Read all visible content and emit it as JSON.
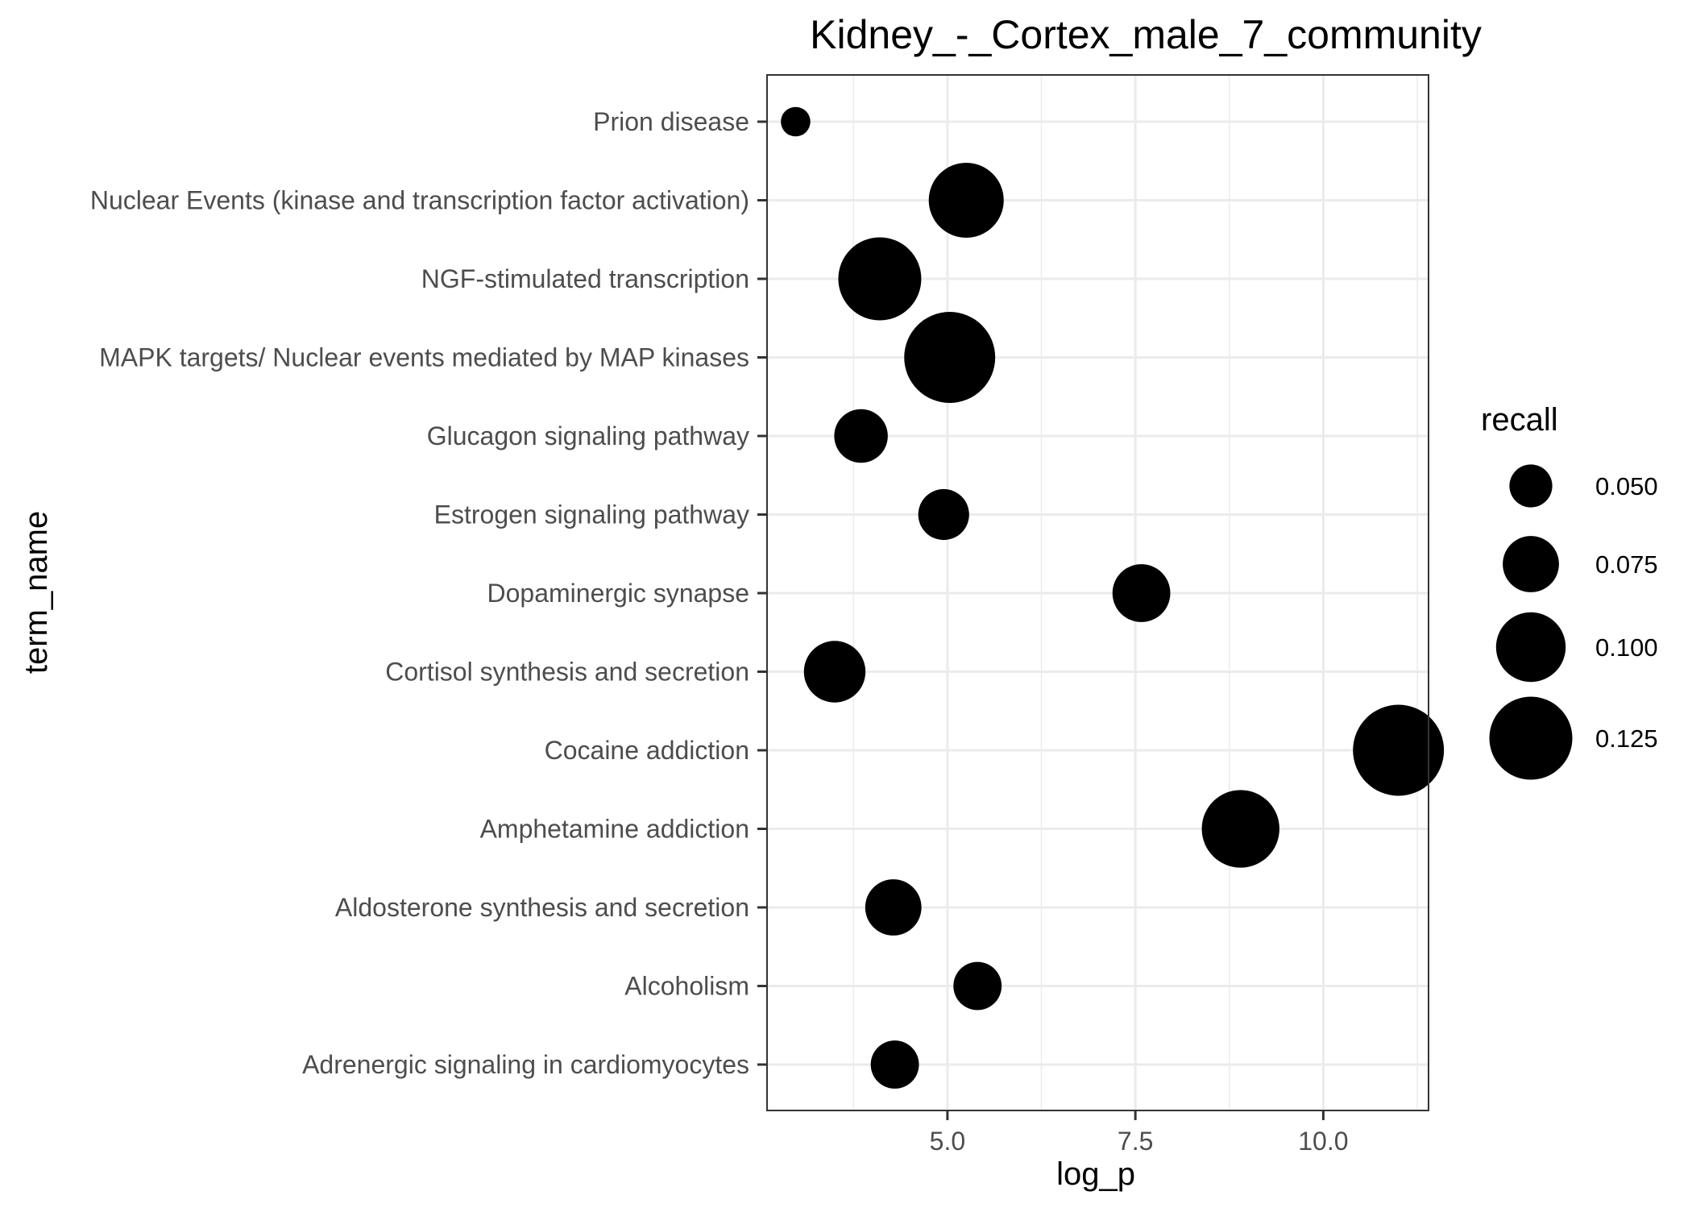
{
  "chart_data": {
    "type": "scatter",
    "title": "Kidney_-_Cortex_male_7_community",
    "xlabel": "log_p",
    "ylabel": "term_name",
    "xlim": [
      2.6,
      11.4
    ],
    "x_ticks": [
      {
        "value": 5.0,
        "label": "5.0"
      },
      {
        "value": 7.5,
        "label": "7.5"
      },
      {
        "value": 10.0,
        "label": "10.0"
      }
    ],
    "categories": [
      "Prion disease",
      "Nuclear Events (kinase and transcription factor activation)",
      "NGF-stimulated transcription",
      "MAPK targets/ Nuclear events mediated by MAP kinases",
      "Glucagon signaling pathway",
      "Estrogen signaling pathway",
      "Dopaminergic synapse",
      "Cortisol synthesis and secretion",
      "Cocaine addiction",
      "Amphetamine addiction",
      "Aldosterone synthesis and secretion",
      "Alcoholism",
      "Adrenergic signaling in cardiomyocytes"
    ],
    "points": [
      {
        "term_name": "Prion disease",
        "log_p": 2.98,
        "recall": 0.025
      },
      {
        "term_name": "Nuclear Events (kinase and transcription factor activation)",
        "log_p": 5.25,
        "recall": 0.11
      },
      {
        "term_name": "NGF-stimulated transcription",
        "log_p": 4.1,
        "recall": 0.125
      },
      {
        "term_name": "MAPK targets/ Nuclear events mediated by MAP kinases",
        "log_p": 5.03,
        "recall": 0.14
      },
      {
        "term_name": "Glucagon signaling pathway",
        "log_p": 3.85,
        "recall": 0.07
      },
      {
        "term_name": "Estrogen signaling pathway",
        "log_p": 4.95,
        "recall": 0.065
      },
      {
        "term_name": "Dopaminergic synapse",
        "log_p": 7.58,
        "recall": 0.078
      },
      {
        "term_name": "Cortisol synthesis and secretion",
        "log_p": 3.5,
        "recall": 0.085
      },
      {
        "term_name": "Cocaine addiction",
        "log_p": 11.0,
        "recall": 0.14
      },
      {
        "term_name": "Amphetamine addiction",
        "log_p": 8.9,
        "recall": 0.115
      },
      {
        "term_name": "Aldosterone synthesis and secretion",
        "log_p": 4.28,
        "recall": 0.075
      },
      {
        "term_name": "Alcoholism",
        "log_p": 5.4,
        "recall": 0.06
      },
      {
        "term_name": "Adrenergic signaling in cardiomyocytes",
        "log_p": 4.3,
        "recall": 0.06
      }
    ],
    "size_legend": {
      "title": "recall",
      "entries": [
        {
          "value": 0.05,
          "label": "0.050"
        },
        {
          "value": 0.075,
          "label": "0.075"
        },
        {
          "value": 0.1,
          "label": "0.100"
        },
        {
          "value": 0.125,
          "label": "0.125"
        }
      ],
      "placement": "right"
    },
    "grid": true,
    "point_color": "#000000",
    "grid_color": "#ebebeb",
    "panel_border_color": "#333333"
  }
}
